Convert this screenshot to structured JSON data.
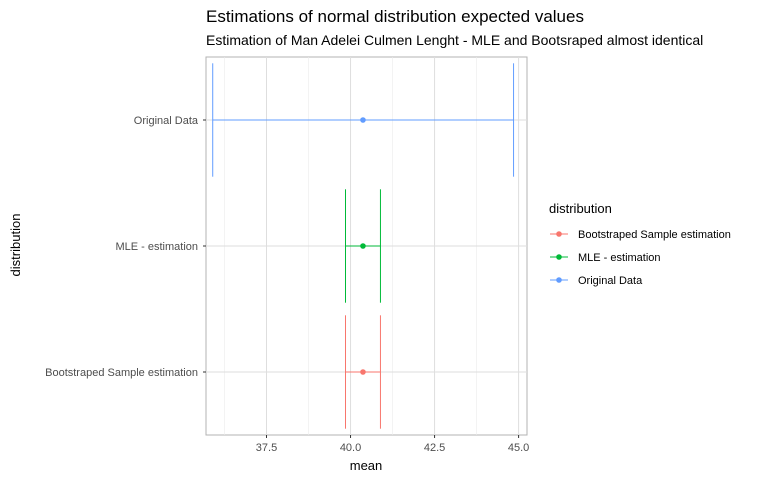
{
  "chart_data": {
    "type": "errorbar",
    "title": "Estimations of normal distribution expected values",
    "subtitle": "Estimation of Man Adelei Culmen Lenght - MLE and Bootsraped almost identical",
    "xlabel": "mean",
    "ylabel": "distribution",
    "xlim": [
      35.7,
      45.25
    ],
    "xticks": [
      37.5,
      40.0,
      42.5,
      45.0
    ],
    "xtick_labels": [
      "37.5",
      "40.0",
      "42.5",
      "45.0"
    ],
    "grid": true,
    "categories": [
      "Bootstraped Sample estimation",
      "MLE - estimation",
      "Original Data"
    ],
    "series": [
      {
        "name": "Bootstraped Sample estimation",
        "mean": 40.37,
        "lower": 39.85,
        "upper": 40.89,
        "color": "#F8766D"
      },
      {
        "name": "MLE - estimation",
        "mean": 40.37,
        "lower": 39.85,
        "upper": 40.89,
        "color": "#00BA38"
      },
      {
        "name": "Original Data",
        "mean": 40.37,
        "lower": 35.9,
        "upper": 44.85,
        "color": "#619CFF"
      }
    ],
    "legend": {
      "title": "distribution",
      "position": "right",
      "entries": [
        "Bootstraped Sample estimation",
        "MLE - estimation",
        "Original Data"
      ]
    }
  }
}
